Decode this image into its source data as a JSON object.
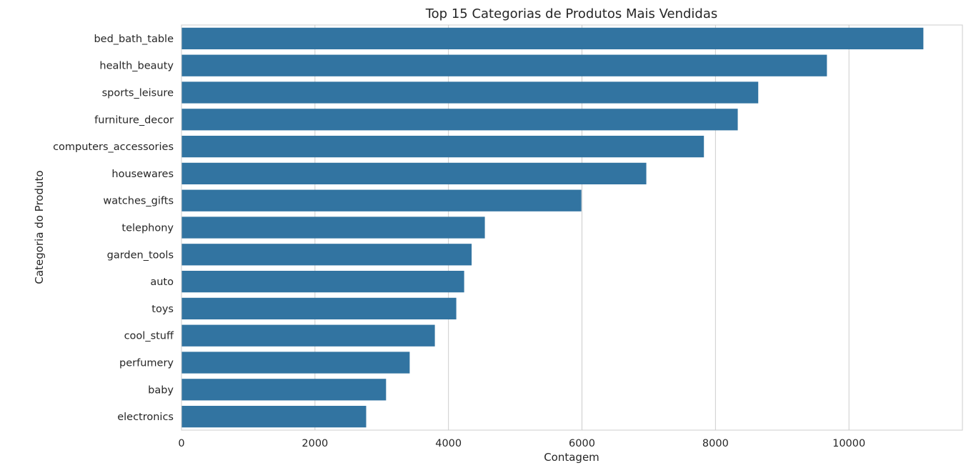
{
  "chart_data": {
    "type": "bar",
    "orientation": "horizontal",
    "title": "Top 15 Categorias de Produtos Mais Vendidas",
    "xlabel": "Contagem",
    "ylabel": "Categoria do Produto",
    "categories": [
      "bed_bath_table",
      "health_beauty",
      "sports_leisure",
      "furniture_decor",
      "computers_accessories",
      "housewares",
      "watches_gifts",
      "telephony",
      "garden_tools",
      "auto",
      "toys",
      "cool_stuff",
      "perfumery",
      "baby",
      "electronics"
    ],
    "values": [
      11115,
      9670,
      8641,
      8334,
      7827,
      6964,
      5991,
      4545,
      4347,
      4235,
      4117,
      3796,
      3419,
      3065,
      2767
    ],
    "xlim": [
      0,
      11700
    ],
    "xticks": [
      0,
      2000,
      4000,
      6000,
      8000,
      10000
    ],
    "grid": "vertical",
    "bar_color": "#3274a1",
    "legend": "none"
  }
}
